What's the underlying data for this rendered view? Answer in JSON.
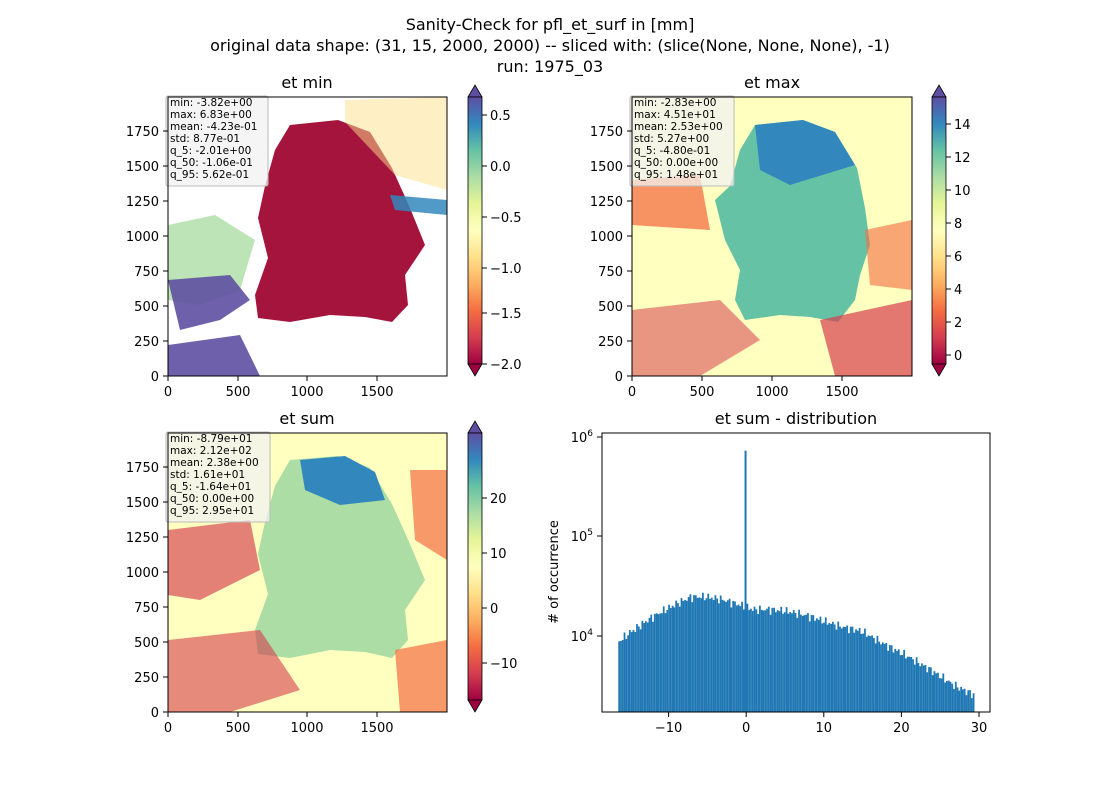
{
  "figure": {
    "title_lines": [
      "Sanity-Check for pfl_et_surf in [mm]",
      "original data shape: (31, 15, 2000, 2000) -- sliced with: (slice(None, None, None), -1)",
      "run: 1975_03"
    ]
  },
  "chart_data": [
    {
      "type": "heatmap",
      "title": "et min",
      "colormap": "Spectral",
      "x_ticks": [
        "0",
        "500",
        "1000",
        "1500"
      ],
      "y_ticks": [
        "0",
        "250",
        "500",
        "750",
        "1000",
        "1250",
        "1500",
        "1750"
      ],
      "xlim": [
        0,
        2000
      ],
      "ylim": [
        0,
        2000
      ],
      "colorbar": {
        "range": [
          -2.0,
          0.6
        ],
        "ticks": [
          "0.5",
          "0.0",
          "−0.5",
          "−1.0",
          "−1.5",
          "−2.0"
        ],
        "extend": "both"
      },
      "stats": [
        "min: -3.82e+00",
        "max: 6.83e+00",
        "mean: -4.23e-01",
        "std: 8.77e-01",
        "q_5: -2.01e+00",
        "q_50: -1.06e-01",
        "q_95: 5.62e-01"
      ]
    },
    {
      "type": "heatmap",
      "title": "et max",
      "colormap": "Spectral",
      "x_ticks": [
        "0",
        "500",
        "1000",
        "1500"
      ],
      "y_ticks": [
        "0",
        "250",
        "500",
        "750",
        "1000",
        "1250",
        "1500",
        "1750"
      ],
      "xlim": [
        0,
        2000
      ],
      "ylim": [
        0,
        2000
      ],
      "colorbar": {
        "range": [
          -0.8,
          15.0
        ],
        "ticks": [
          "14",
          "12",
          "10",
          "8",
          "6",
          "4",
          "2",
          "0"
        ],
        "extend": "both"
      },
      "stats": [
        "min: -2.83e+00",
        "max: 4.51e+01",
        "mean: 2.53e+00",
        "std: 5.27e+00",
        "q_5: -4.80e-01",
        "q_50: 0.00e+00",
        "q_95: 1.48e+01"
      ]
    },
    {
      "type": "heatmap",
      "title": "et sum",
      "colormap": "Spectral",
      "x_ticks": [
        "0",
        "500",
        "1000",
        "1500"
      ],
      "y_ticks": [
        "0",
        "250",
        "500",
        "750",
        "1000",
        "1250",
        "1500",
        "1750"
      ],
      "xlim": [
        0,
        2000
      ],
      "ylim": [
        0,
        2000
      ],
      "colorbar": {
        "range": [
          -16.4,
          29.5
        ],
        "ticks": [
          "20",
          "10",
          "0",
          "−10"
        ],
        "extend": "both"
      },
      "stats": [
        "min: -8.79e+01",
        "max: 2.12e+02",
        "mean: 2.38e+00",
        "std: 1.61e+01",
        "q_5: -1.64e+01",
        "q_50: 0.00e+00",
        "q_95: 2.95e+01"
      ]
    },
    {
      "type": "bar",
      "title": "et sum - distribution",
      "ylabel": "# of occurrence",
      "xlabel": "",
      "yscale": "log",
      "xlim": [
        -18.5,
        31.5
      ],
      "ylim": [
        1600,
        1250000
      ],
      "x_ticks": [
        "−10",
        "0",
        "10",
        "20",
        "30"
      ],
      "y_ticks": [
        "10^4",
        "10^5",
        "10^6"
      ],
      "bin_range": [
        -16.4,
        29.5
      ],
      "bin_count": 200,
      "spike": {
        "x": 0,
        "count": 820000
      },
      "color": "#1f77b4",
      "profile_points": [
        [
          -16.4,
          8500
        ],
        [
          -15,
          10500
        ],
        [
          -12,
          15500
        ],
        [
          -9,
          21000
        ],
        [
          -7,
          25000
        ],
        [
          -5,
          25000
        ],
        [
          -3,
          23500
        ],
        [
          -1,
          21000
        ],
        [
          1,
          18500
        ],
        [
          3,
          18500
        ],
        [
          5,
          18000
        ],
        [
          8,
          16000
        ],
        [
          12,
          12500
        ],
        [
          15,
          11000
        ],
        [
          18,
          8000
        ],
        [
          21,
          6000
        ],
        [
          24,
          4300
        ],
        [
          27,
          3000
        ],
        [
          29.5,
          2400
        ]
      ]
    }
  ]
}
